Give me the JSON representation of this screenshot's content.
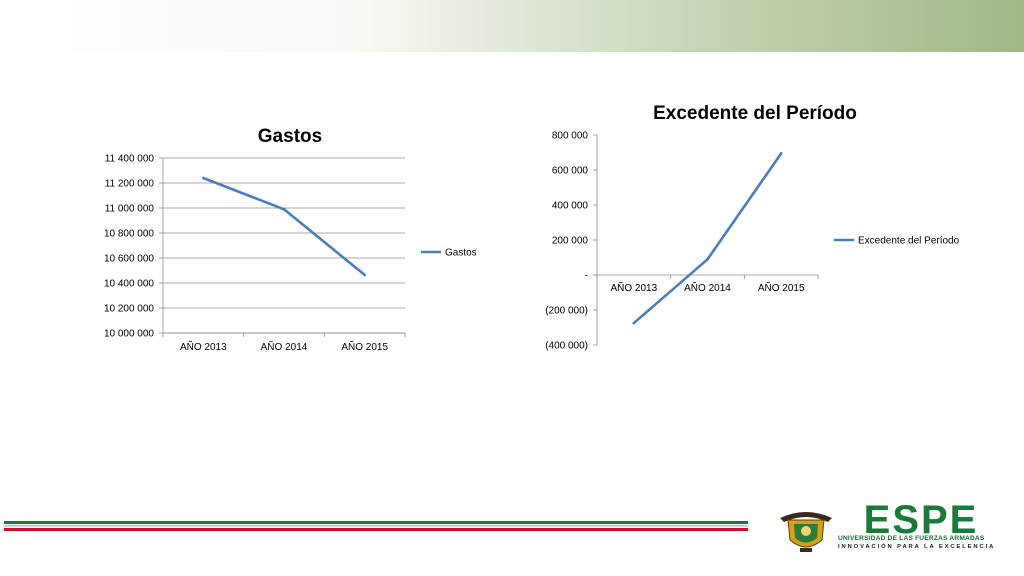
{
  "colors": {
    "line": "#4a7ebb",
    "grid": "#8c8c8c",
    "axis": "#8c8c8c",
    "text": "#000000",
    "band_end": "#9fb884",
    "footer_green": "#1a7a3a",
    "footer_red": "#c8102e"
  },
  "chart_data": [
    {
      "type": "line",
      "title": "Gastos",
      "categories": [
        "AÑO 2013",
        "AÑO 2014",
        "AÑO 2015"
      ],
      "series": [
        {
          "name": "Gastos",
          "values": [
            11240000,
            10990000,
            10465000
          ]
        }
      ],
      "ylim": [
        10000000,
        11400000
      ],
      "yticks": [
        "11 400 000",
        "11 200 000",
        "11 000 000",
        "10 800 000",
        "10 600 000",
        "10 400 000",
        "10 200 000",
        "10 000 000"
      ],
      "grid": true,
      "legend": "right"
    },
    {
      "type": "line",
      "title": "Excedente del Período",
      "categories": [
        "AÑO 2013",
        "AÑO 2014",
        "AÑO 2015"
      ],
      "series": [
        {
          "name": "Excedente del Período",
          "values": [
            -275000,
            90000,
            695000
          ]
        }
      ],
      "ylim": [
        -400000,
        800000
      ],
      "yticks": [
        "800 000",
        "600 000",
        "400 000",
        "200 000",
        "-",
        "(200 000)",
        "(400 000)"
      ],
      "grid": false,
      "legend": "right"
    }
  ],
  "footer": {
    "logo": {
      "word": "ESPE",
      "subtitle": "UNIVERSIDAD DE LAS FUERZAS ARMADAS",
      "motto": "INNOVACIÓN PARA LA EXCELENCIA"
    }
  }
}
